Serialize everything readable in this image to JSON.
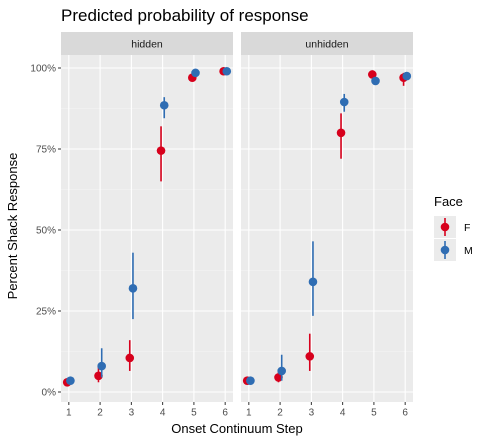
{
  "chart_data": {
    "type": "scatter",
    "title": "Predicted probability of response",
    "xlabel": "Onset Continuum Step",
    "ylabel": "Percent Shack Response",
    "x_ticks": [
      1,
      2,
      3,
      4,
      5,
      6
    ],
    "x_tick_labels": [
      "1",
      "2",
      "3",
      "4",
      "5",
      "6"
    ],
    "y_ticks": [
      0,
      0.25,
      0.5,
      0.75,
      1.0
    ],
    "y_tick_labels": [
      "0%",
      "25%",
      "50%",
      "75%",
      "100%"
    ],
    "xlim": [
      0.75,
      6.25
    ],
    "ylim": [
      -0.02,
      1.1
    ],
    "grid": true,
    "legend": {
      "title": "Face",
      "position": "right",
      "entries": [
        {
          "label": "F",
          "color": "#d7001c"
        },
        {
          "label": "M",
          "color": "#2f6db3"
        }
      ]
    },
    "facets": [
      {
        "strip": "hidden",
        "series": [
          {
            "name": "F",
            "color": "#d7001c",
            "x": [
              1,
              2,
              3,
              4,
              5,
              6
            ],
            "y": [
              0.03,
              0.05,
              0.105,
              0.745,
              0.97,
              0.99
            ],
            "ymin": [
              0.025,
              0.03,
              0.065,
              0.65,
              0.96,
              0.985
            ],
            "ymax": [
              0.04,
              0.08,
              0.16,
              0.82,
              0.98,
              0.995
            ]
          },
          {
            "name": "M",
            "color": "#2f6db3",
            "x": [
              1,
              2,
              3,
              4,
              5,
              6
            ],
            "y": [
              0.035,
              0.08,
              0.32,
              0.885,
              0.985,
              0.99
            ],
            "ymin": [
              0.03,
              0.045,
              0.225,
              0.845,
              0.98,
              0.985
            ],
            "ymax": [
              0.04,
              0.135,
              0.43,
              0.91,
              0.99,
              0.995
            ]
          }
        ]
      },
      {
        "strip": "unhidden",
        "series": [
          {
            "name": "F",
            "color": "#d7001c",
            "x": [
              1,
              2,
              3,
              4,
              5,
              6
            ],
            "y": [
              0.035,
              0.045,
              0.11,
              0.8,
              0.98,
              0.97
            ],
            "ymin": [
              0.03,
              0.03,
              0.065,
              0.72,
              0.97,
              0.945
            ],
            "ymax": [
              0.04,
              0.065,
              0.18,
              0.86,
              0.99,
              0.985
            ]
          },
          {
            "name": "M",
            "color": "#2f6db3",
            "x": [
              1,
              2,
              3,
              4,
              5,
              6
            ],
            "y": [
              0.035,
              0.065,
              0.34,
              0.895,
              0.96,
              0.975
            ],
            "ymin": [
              0.03,
              0.035,
              0.235,
              0.865,
              0.95,
              0.965
            ],
            "ymax": [
              0.04,
              0.115,
              0.465,
              0.92,
              0.97,
              0.985
            ]
          }
        ]
      }
    ]
  }
}
